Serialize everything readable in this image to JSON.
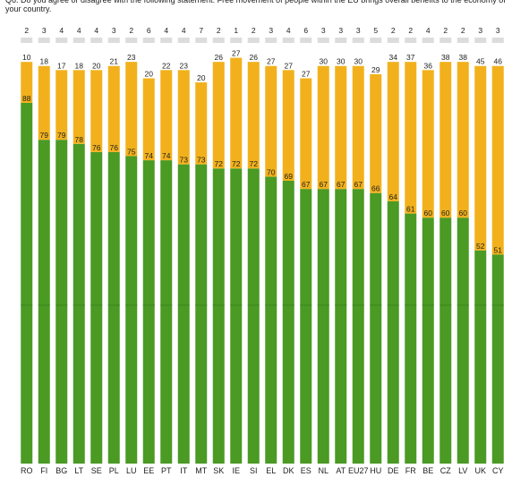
{
  "question": "Q6. Do you agree or disagree with the following statement: Free movement of people within the EU brings overall benefits to the economy of your country.",
  "colors": {
    "agree": "#4a9a24",
    "disagree": "#f2b11c",
    "dont_know": "#dcdcdc",
    "agree_dark": "#3d8a1d",
    "disagree_dark": "#d99a12"
  },
  "chart_data": {
    "type": "bar",
    "stacked": true,
    "categories": [
      "RO",
      "FI",
      "BG",
      "LT",
      "SE",
      "PL",
      "LU",
      "EE",
      "PT",
      "IT",
      "MT",
      "SK",
      "IE",
      "SI",
      "EL",
      "DK",
      "ES",
      "NL",
      "AT",
      "EU27",
      "HU",
      "DE",
      "FR",
      "BE",
      "CZ",
      "LV",
      "UK",
      "CY"
    ],
    "series": [
      {
        "values": [
          88,
          79,
          79,
          78,
          76,
          76,
          75,
          74,
          74,
          73,
          73,
          72,
          72,
          72,
          70,
          69,
          67,
          67,
          67,
          67,
          66,
          64,
          61,
          60,
          60,
          60,
          52,
          51
        ]
      },
      {
        "values": [
          10,
          18,
          17,
          18,
          20,
          21,
          23,
          20,
          22,
          23,
          20,
          26,
          27,
          26,
          27,
          27,
          27,
          30,
          30,
          30,
          29,
          34,
          37,
          36,
          38,
          38,
          45,
          46
        ]
      },
      {
        "values": [
          2,
          3,
          4,
          4,
          4,
          3,
          2,
          6,
          4,
          4,
          7,
          2,
          1,
          2,
          3,
          4,
          6,
          3,
          3,
          3,
          5,
          2,
          2,
          4,
          2,
          2,
          3,
          3
        ]
      }
    ],
    "ylim": [
      0,
      100
    ]
  }
}
